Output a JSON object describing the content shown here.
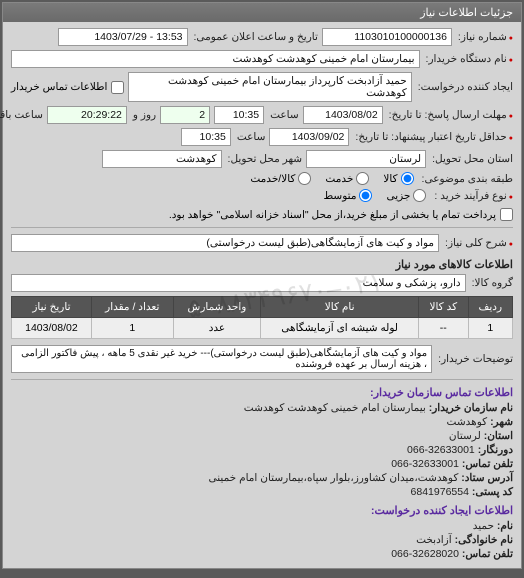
{
  "panel_title": "جزئیات اطلاعات نیاز",
  "fields": {
    "req_number_lbl": "شماره نیاز:",
    "req_number": "1103010100000136",
    "pub_datetime_lbl": "تاریخ و ساعت اعلان عمومی:",
    "pub_datetime": "13:53 - 1403/07/29",
    "buyer_device_lbl": "نام دستگاه خریدار:",
    "buyer_device": "بیمارستان امام خمینی کوهدشت کوهدشت",
    "creator_lbl": "ایجاد کننده درخواست:",
    "creator": "حمید آزادبخت کارپرداز بیمارستان امام خمینی کوهدشت کوهدشت",
    "buyer_contact_lbl": "اطلاعات تماس خریدار",
    "deadline_send_lbl": "مهلت ارسال پاسخ: تا تاریخ:",
    "deadline_send_date": "1403/08/02",
    "time_lbl": "ساعت",
    "deadline_send_time": "10:35",
    "remain_lbl": "روز و",
    "remain_days": "2",
    "remain_time": "20:29:22",
    "remain_suffix": "ساعت باقی مانده",
    "valid_until_lbl": "حداقل تاریخ اعتبار پیشنهاد: تا تاریخ:",
    "valid_until_date": "1403/09/02",
    "valid_until_time": "10:35",
    "province_lbl": "استان محل تحویل:",
    "province": "لرستان",
    "city_lbl": "شهر محل تحویل:",
    "city": "کوهدشت",
    "grouping_lbl": "طبقه بندی موضوعی:",
    "grouping_options": {
      "all": "کالا",
      "partial": "خدمت",
      "both": "کالا/خدمت"
    },
    "process_lbl": "نوع فرآیند خرید :",
    "process_options": {
      "small": "جزیی",
      "medium": "متوسط"
    },
    "process_note": "پرداخت تمام یا بخشی از مبلغ خرید،از محل \"اسناد خزانه اسلامی\" خواهد بود.",
    "desc_lbl": "شرح کلی نیاز:",
    "desc": "مواد و کیت های آزمایشگاهی(طبق لیست درخواستی)",
    "goods_section": "اطلاعات کالاهای مورد نیاز",
    "goods_group_lbl": "گروه کالا:",
    "goods_group": "دارو، پزشکی و سلامت",
    "buyer_notes_lbl": "توضیحات خریدار:",
    "buyer_notes": "مواد و کیت های آزمایشگاهی(طبق لیست درخواستی)--- خرید غیر نقدی 5 ماهه ، پیش فاکتور الزامی ، هزینه ارسال بر عهده فروشنده",
    "contact_section": "اطلاعات تماس سازمان خریدار:",
    "org_name_lbl": "نام سازمان خریدار:",
    "org_name": "بیمارستان امام خمینی کوهدشت کوهدشت",
    "org_city_lbl": "شهر:",
    "org_city": "کوهدشت",
    "org_province_lbl": "استان:",
    "org_province": "لرستان",
    "fax_lbl": "دورنگار:",
    "fax": "32633001-066",
    "tel_lbl": "تلفن تماس:",
    "tel": "32633001-066",
    "address_lbl": "آدرس ستاد:",
    "address": "کوهدشت،میدان کشاورز،بلوار سپاه،بیمارستان امام خمینی",
    "postal_lbl": "کد پستی:",
    "postal": "6841976554",
    "creator_section": "اطلاعات ایجاد کننده درخواست:",
    "fname_lbl": "نام:",
    "fname": "حمید",
    "lname_lbl": "نام خانوادگی:",
    "lname": "آزادبخت",
    "ctel_lbl": "تلفن تماس:",
    "ctel": "32628020-066"
  },
  "table": {
    "headers": {
      "row": "ردیف",
      "code": "کد کالا",
      "name": "نام کالا",
      "unit": "واحد شمارش",
      "qty": "تعداد / مقدار",
      "date": "تاریخ نیاز"
    },
    "rows": [
      {
        "row": "1",
        "code": "--",
        "name": "لوله شیشه ای آزمایشگاهی",
        "unit": "عدد",
        "qty": "1",
        "date": "1403/08/02"
      }
    ]
  },
  "watermark": "۰۲۱–۸۸۳۴۹۶۷۰–۵"
}
